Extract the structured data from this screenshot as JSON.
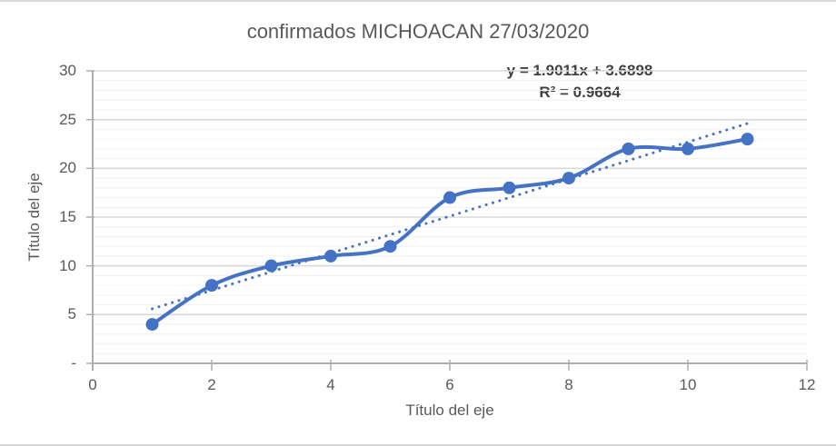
{
  "chart_data": {
    "type": "line",
    "title": "confirmados MICHOACAN 27/03/2020",
    "xlabel": "Título del eje",
    "ylabel": "Título del eje",
    "x": [
      1,
      2,
      3,
      4,
      5,
      6,
      7,
      8,
      9,
      10,
      11
    ],
    "series": [
      {
        "name": "confirmados",
        "values": [
          4,
          8,
          10,
          11,
          12,
          17,
          18,
          19,
          22,
          22,
          23
        ]
      }
    ],
    "xlim": [
      0,
      12
    ],
    "ylim": [
      0,
      30
    ],
    "x_tick_values": [
      0,
      2,
      4,
      6,
      8,
      10,
      12
    ],
    "x_tick_labels": [
      "0",
      "2",
      "4",
      "6",
      "8",
      "10",
      "12"
    ],
    "y_tick_values": [
      0,
      5,
      10,
      15,
      20,
      25,
      30
    ],
    "y_tick_labels": [
      "-",
      "5",
      "10",
      "15",
      "20",
      "25",
      "30"
    ],
    "y_minor_unit": 1,
    "grid": "horizontal-major-and-minor",
    "legend_position": "none",
    "smooth_line": true,
    "marker": "circle",
    "colors": {
      "series": "#4472C4",
      "trendline": "#4472C4",
      "major_gridline": "#D9D9D9",
      "minor_gridline": "#F2F2F2",
      "axis_line": "#AFAFAF",
      "title_text": "#595959",
      "equation_text": "#404040"
    },
    "trendline": {
      "type": "linear",
      "slope": 1.9011,
      "intercept": 3.6898,
      "x_start": 1,
      "x_end": 11,
      "equation_label": "y = 1.9011x + 3.6898",
      "r_squared_label": "R² = 0.9664"
    }
  }
}
